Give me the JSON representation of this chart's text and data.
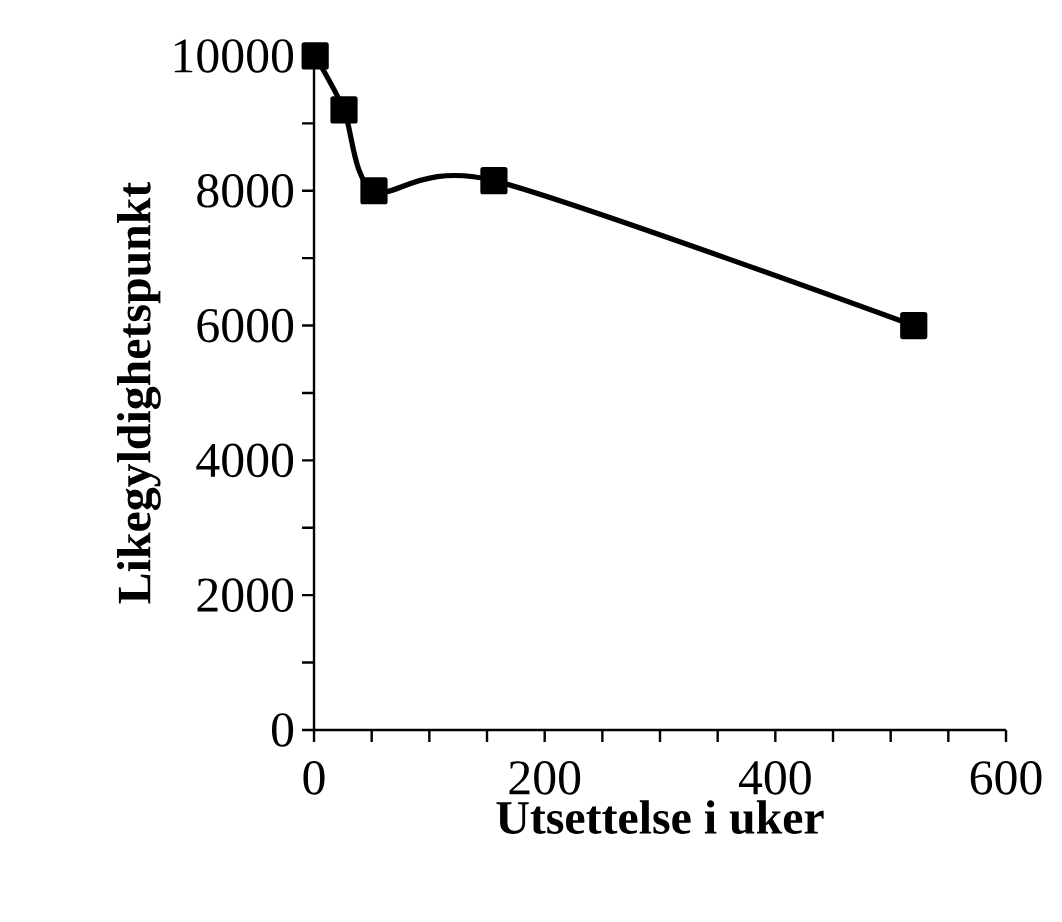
{
  "chart_data": {
    "type": "line",
    "xlabel": "Utsettelse i uker",
    "ylabel": "Likegyldighetspunkt",
    "x": [
      1,
      26,
      52,
      156,
      520
    ],
    "series": [
      {
        "color": "#000000",
        "values": [
          10000,
          9200,
          8000,
          8150,
          6000
        ]
      }
    ],
    "xlim": [
      0,
      600
    ],
    "xticks": [
      0,
      {
        "value": 50,
        "label": null
      },
      {
        "value": 100,
        "label": null
      },
      {
        "value": 150,
        "label": null
      },
      200,
      {
        "value": 250,
        "label": null
      },
      {
        "value": 300,
        "label": null
      },
      {
        "value": 350,
        "label": null
      },
      400,
      {
        "value": 450,
        "label": null
      },
      {
        "value": 500,
        "label": null
      },
      {
        "value": 550,
        "label": null
      },
      600
    ],
    "ylim": [
      0,
      10000
    ],
    "yticks": [
      0,
      {
        "value": 1000,
        "label": null
      },
      2000,
      {
        "value": 3000,
        "label": null
      },
      4000,
      {
        "value": 5000,
        "label": null
      },
      6000,
      {
        "value": 7000,
        "label": null
      },
      8000,
      {
        "value": 9000,
        "label": null
      },
      10000
    ],
    "marker": "square",
    "line_style": "solid"
  }
}
